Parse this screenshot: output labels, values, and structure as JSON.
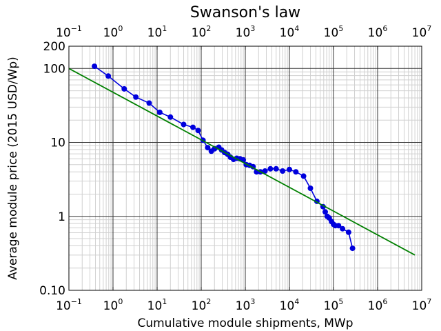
{
  "chart_data": {
    "type": "scatter",
    "title": "Swanson's law",
    "xlabel": "Cumulative module shipments, MWp",
    "ylabel": "Average module price (2015 USD/Wp)",
    "x_scale": "log",
    "y_scale": "log",
    "xlim": [
      0.1,
      10000000
    ],
    "ylim": [
      0.1,
      200
    ],
    "grid": true,
    "x_tick_values": [
      0.1,
      1,
      10,
      100,
      1000,
      10000,
      100000,
      1000000,
      10000000
    ],
    "x_tick_bases": [
      "10",
      "10",
      "10",
      "10",
      "10",
      "10",
      "10",
      "10",
      "10"
    ],
    "x_tick_exponents": [
      "−1",
      "0",
      "1",
      "2",
      "3",
      "4",
      "5",
      "6",
      "7"
    ],
    "y_tick_values": [
      0.1,
      1,
      10,
      100,
      200
    ],
    "y_tick_labels": [
      "0.10",
      "1",
      "10",
      "100",
      "200"
    ],
    "series": [
      {
        "color": "#0000dd",
        "x": [
          0.38,
          0.78,
          1.8,
          3.3,
          6.6,
          11.5,
          20,
          40,
          65,
          85,
          110,
          140,
          170,
          200,
          250,
          290,
          340,
          400,
          460,
          540,
          640,
          760,
          900,
          1050,
          1250,
          1500,
          1800,
          2200,
          2800,
          3700,
          5000,
          7000,
          10000,
          14000,
          21000,
          30000,
          42000,
          58000,
          65000,
          72000,
          80000,
          90000,
          100000,
          110000,
          130000,
          160000,
          220000,
          270000
        ],
        "y": [
          107,
          79,
          53,
          41,
          34,
          25.5,
          22,
          17.5,
          16,
          14.5,
          10.7,
          8.5,
          7.6,
          8.2,
          8.6,
          7.9,
          7.3,
          6.9,
          6.3,
          5.9,
          6.1,
          6.0,
          5.8,
          5.0,
          4.9,
          4.7,
          4.0,
          4.0,
          4.1,
          4.4,
          4.4,
          4.1,
          4.3,
          4.0,
          3.5,
          2.4,
          1.6,
          1.35,
          1.15,
          1.0,
          0.95,
          0.85,
          0.78,
          0.75,
          0.75,
          0.68,
          0.61,
          0.37
        ]
      },
      {
        "color": "#008000",
        "type": "line",
        "x": [
          0.1,
          7000000
        ],
        "y": [
          100,
          0.3
        ]
      }
    ]
  }
}
